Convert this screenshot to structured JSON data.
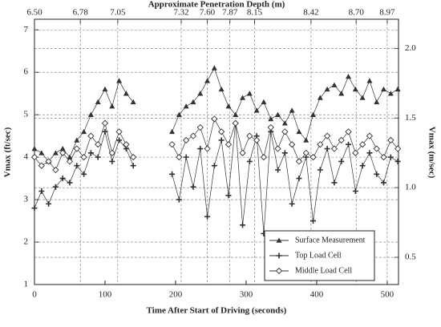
{
  "chart_data": {
    "type": "line",
    "title": "Approximate Penetration Depth (m)",
    "x_label": "Time After Start of Driving (seconds)",
    "y_label": "Vmax (ft/sec)",
    "y2_label": "Vmax (m/sec)",
    "x": [
      0,
      10,
      20,
      30,
      40,
      50,
      60,
      70,
      80,
      90,
      100,
      110,
      120,
      130,
      140,
      170,
      195,
      205,
      215,
      225,
      235,
      245,
      255,
      265,
      275,
      285,
      295,
      305,
      315,
      325,
      335,
      345,
      355,
      365,
      375,
      385,
      395,
      405,
      415,
      425,
      435,
      445,
      455,
      465,
      475,
      485,
      495,
      505,
      515
    ],
    "series": [
      {
        "name": "Surface Measurement",
        "color": "#333333",
        "marker": "triangle",
        "values": [
          4.2,
          4.1,
          3.9,
          4.1,
          4.2,
          4.0,
          4.4,
          4.6,
          5.0,
          5.3,
          5.6,
          5.2,
          5.8,
          5.5,
          5.3,
          null,
          4.6,
          5.0,
          5.2,
          5.3,
          5.5,
          5.8,
          6.1,
          5.6,
          5.2,
          5.0,
          5.4,
          5.5,
          5.1,
          5.3,
          4.9,
          5.0,
          4.8,
          5.1,
          4.6,
          4.4,
          5.0,
          5.4,
          5.6,
          5.7,
          5.5,
          5.9,
          5.6,
          5.4,
          5.8,
          5.3,
          5.6,
          5.5,
          5.6
        ]
      },
      {
        "name": "Top Load Cell",
        "color": "#333333",
        "marker": "plus",
        "values": [
          2.8,
          3.2,
          2.9,
          3.3,
          3.5,
          3.4,
          3.8,
          3.6,
          4.1,
          4.0,
          4.6,
          3.9,
          4.4,
          4.2,
          3.8,
          null,
          3.6,
          3.0,
          4.0,
          3.3,
          4.2,
          2.6,
          3.8,
          4.4,
          3.1,
          4.8,
          2.4,
          3.9,
          4.5,
          2.2,
          4.6,
          3.7,
          4.1,
          2.9,
          3.5,
          4.0,
          2.5,
          3.7,
          4.2,
          3.4,
          3.9,
          4.3,
          3.2,
          3.8,
          4.1,
          3.6,
          3.4,
          4.0,
          3.9
        ]
      },
      {
        "name": "Middle Load Cell",
        "color": "#333333",
        "marker": "diamond",
        "values": [
          4.0,
          3.8,
          3.9,
          3.7,
          4.1,
          3.9,
          4.2,
          4.0,
          4.5,
          4.3,
          4.8,
          4.1,
          4.6,
          4.3,
          4.0,
          null,
          4.3,
          4.0,
          4.4,
          4.5,
          4.7,
          4.2,
          4.9,
          4.6,
          4.3,
          4.8,
          4.1,
          4.5,
          4.4,
          4.0,
          4.7,
          4.2,
          4.6,
          4.3,
          3.9,
          4.1,
          4.0,
          4.3,
          4.5,
          4.2,
          4.4,
          4.6,
          4.1,
          4.3,
          4.5,
          4.2,
          4.0,
          4.4,
          4.2
        ]
      }
    ],
    "xlim": [
      0,
      516
    ],
    "xticks": [
      0,
      100,
      200,
      300,
      400,
      500
    ],
    "x2ticks": [
      {
        "value": 0,
        "label": "6.50"
      },
      {
        "value": 65,
        "label": "6.78"
      },
      {
        "value": 118,
        "label": "7.05"
      },
      {
        "value": 208,
        "label": "7.32"
      },
      {
        "value": 245,
        "label": "7.60"
      },
      {
        "value": 277,
        "label": "7.87"
      },
      {
        "value": 312,
        "label": "8.15"
      },
      {
        "value": 392,
        "label": "8.42"
      },
      {
        "value": 456,
        "label": "8.70"
      },
      {
        "value": 500,
        "label": "8.97"
      }
    ],
    "ylim": [
      1,
      7.25
    ],
    "yticks": [
      1,
      2,
      3,
      4,
      5,
      6,
      7
    ],
    "y2lim": [
      0.3048,
      2.2098
    ],
    "y2ticks": [
      0.5,
      {
        "value": 1.0,
        "label": "1.0"
      },
      1.5,
      {
        "value": 2.0,
        "label": "2.0"
      }
    ],
    "grid": true,
    "legend": "lower right"
  }
}
